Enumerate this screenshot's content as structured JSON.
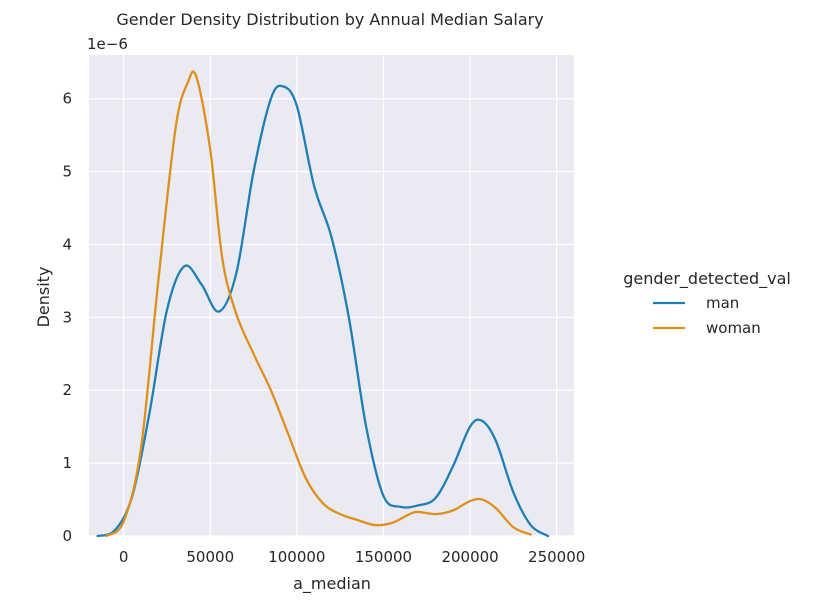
{
  "chart_data": {
    "type": "line",
    "title": "Gender Density Distribution by Annual Median Salary",
    "xlabel": "a_median",
    "ylabel": "Density",
    "y_offset_text": "1e−6",
    "y_scale_multiplier": 1e-06,
    "xlim": [
      -20000,
      260000
    ],
    "ylim": [
      0,
      6.6
    ],
    "xticks": [
      0,
      50000,
      100000,
      150000,
      200000,
      250000
    ],
    "xtick_labels": [
      "0",
      "50000",
      "100000",
      "150000",
      "200000",
      "250000"
    ],
    "yticks": [
      0,
      1,
      2,
      3,
      4,
      5,
      6
    ],
    "ytick_labels": [
      "0",
      "1",
      "2",
      "3",
      "4",
      "5",
      "6"
    ],
    "grid": true,
    "background": "#eaeaf2",
    "legend": {
      "title": "gender_detected_val",
      "placement": "right"
    },
    "series": [
      {
        "name": "man",
        "color": "#1f7fb4",
        "x": [
          -15000,
          -5000,
          5000,
          15000,
          25000,
          35000,
          45000,
          55000,
          65000,
          75000,
          85000,
          92000,
          100000,
          110000,
          120000,
          130000,
          140000,
          150000,
          160000,
          170000,
          180000,
          190000,
          200000,
          207000,
          215000,
          225000,
          235000,
          245000
        ],
        "y": [
          0.0,
          0.08,
          0.55,
          1.7,
          3.1,
          3.7,
          3.45,
          3.08,
          3.6,
          5.0,
          6.0,
          6.17,
          5.9,
          4.8,
          4.1,
          3.0,
          1.5,
          0.55,
          0.4,
          0.42,
          0.52,
          0.95,
          1.5,
          1.58,
          1.3,
          0.6,
          0.15,
          0.0
        ]
      },
      {
        "name": "woman",
        "color": "#df8f1b",
        "x": [
          -10000,
          0,
          10000,
          20000,
          30000,
          37000,
          42000,
          50000,
          57000,
          65000,
          75000,
          85000,
          95000,
          105000,
          115000,
          125000,
          135000,
          145000,
          155000,
          165000,
          170000,
          180000,
          190000,
          200000,
          207000,
          215000,
          225000,
          235000
        ],
        "y": [
          0.0,
          0.2,
          1.2,
          3.5,
          5.6,
          6.22,
          6.3,
          5.3,
          3.8,
          3.05,
          2.5,
          2.0,
          1.4,
          0.8,
          0.45,
          0.3,
          0.22,
          0.15,
          0.18,
          0.3,
          0.33,
          0.3,
          0.35,
          0.48,
          0.5,
          0.38,
          0.12,
          0.02
        ]
      }
    ]
  }
}
